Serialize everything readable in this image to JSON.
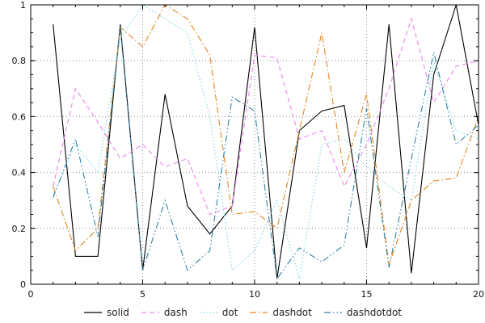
{
  "chart_data": {
    "type": "line",
    "title": "",
    "xlabel": "",
    "ylabel": "",
    "xlim": [
      0,
      20
    ],
    "ylim": [
      0,
      1
    ],
    "grid": true,
    "legend_position": "bottom",
    "xticks": {
      "major": [
        0,
        5,
        10,
        15,
        20
      ],
      "labels": [
        "0",
        "5",
        "10",
        "15",
        "20"
      ],
      "minor_step": 1
    },
    "yticks": {
      "major": [
        0,
        0.2,
        0.4,
        0.6,
        0.8,
        1
      ],
      "labels": [
        "0",
        "0.2",
        "0.4",
        "0.6",
        "0.8",
        "1"
      ],
      "minor_step": 0.05
    },
    "x": [
      1,
      2,
      3,
      4,
      5,
      6,
      7,
      8,
      9,
      10,
      11,
      12,
      13,
      14,
      15,
      16,
      17,
      18,
      19,
      20
    ],
    "series": [
      {
        "name": "solid",
        "style": "solid",
        "color": "#000000",
        "values": [
          0.93,
          0.1,
          0.1,
          0.93,
          0.05,
          0.68,
          0.28,
          0.18,
          0.28,
          0.92,
          0.02,
          0.55,
          0.62,
          0.64,
          0.13,
          0.93,
          0.04,
          0.75,
          1.0,
          0.57
        ]
      },
      {
        "name": "dash",
        "style": "dash",
        "color": "#ee86ee",
        "values": [
          0.35,
          0.7,
          0.58,
          0.45,
          0.5,
          0.42,
          0.45,
          0.25,
          0.28,
          0.82,
          0.81,
          0.52,
          0.55,
          0.35,
          0.5,
          0.7,
          0.95,
          0.65,
          0.78,
          0.8
        ]
      },
      {
        "name": "dot",
        "style": "dot",
        "color": "#79d7e2",
        "values": [
          0.32,
          0.5,
          0.4,
          0.88,
          1.0,
          0.95,
          0.9,
          0.6,
          0.05,
          0.12,
          0.3,
          0.02,
          0.5,
          0.52,
          0.42,
          0.35,
          0.3,
          0.8,
          0.55,
          0.52
        ]
      },
      {
        "name": "dashdot",
        "style": "dashdot",
        "color": "#e3861c",
        "values": [
          0.35,
          0.12,
          0.2,
          0.92,
          0.85,
          1.0,
          0.95,
          0.82,
          0.25,
          0.26,
          0.2,
          0.55,
          0.9,
          0.4,
          0.68,
          0.07,
          0.3,
          0.37,
          0.38,
          0.6
        ]
      },
      {
        "name": "dashdotdot",
        "style": "dashdotdot",
        "color": "#2e83a6",
        "values": [
          0.31,
          0.52,
          0.17,
          0.92,
          0.05,
          0.3,
          0.05,
          0.12,
          0.67,
          0.62,
          0.02,
          0.13,
          0.08,
          0.14,
          0.63,
          0.06,
          0.45,
          0.83,
          0.5,
          0.57
        ]
      }
    ],
    "frame_color": "#000000",
    "grid_color": "#8a8a8a"
  }
}
